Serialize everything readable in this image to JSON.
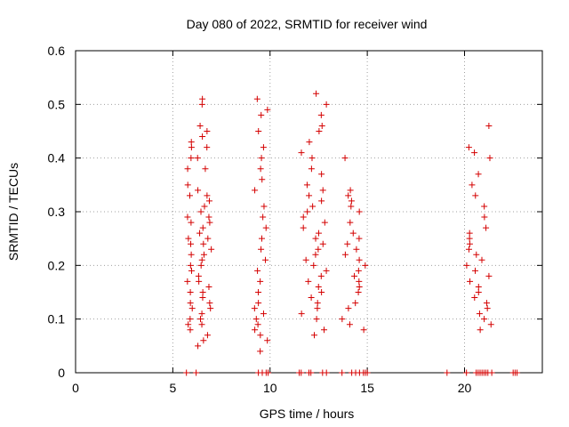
{
  "chart_data": {
    "type": "scatter",
    "title": "Day 080 of 2022, SRMTID for receiver wind",
    "xlabel": "GPS time / hours",
    "ylabel": "SRMTID / TECUs",
    "xlim": [
      0,
      24
    ],
    "ylim": [
      0,
      0.6
    ],
    "xticks": [
      0,
      5,
      10,
      15,
      20
    ],
    "yticks": [
      0,
      0.1,
      0.2,
      0.3,
      0.4,
      0.5,
      0.6
    ],
    "xtick_labels": [
      "0",
      "5",
      "10",
      "15",
      "20"
    ],
    "ytick_labels": [
      "0",
      "0.1",
      "0.2",
      "0.3",
      "0.4",
      "0.5",
      "0.6"
    ],
    "grid": true,
    "marker": "+",
    "series": [
      {
        "name": "SRMTID",
        "color": "#d40000",
        "clusters": [
          {
            "x_range": [
              5.7,
              6.0
            ],
            "y_samples": [
              0.08,
              0.09,
              0.1,
              0.12,
              0.13,
              0.15,
              0.17,
              0.19,
              0.2,
              0.22,
              0.24,
              0.25,
              0.28,
              0.29,
              0.33,
              0.35,
              0.38,
              0.4,
              0.42,
              0.43
            ]
          },
          {
            "x_range": [
              6.2,
              7.0
            ],
            "y_samples": [
              0.05,
              0.06,
              0.07,
              0.09,
              0.1,
              0.11,
              0.12,
              0.13,
              0.14,
              0.15,
              0.16,
              0.17,
              0.18,
              0.2,
              0.21,
              0.22,
              0.23,
              0.24,
              0.25,
              0.26,
              0.27,
              0.28,
              0.29,
              0.3,
              0.31,
              0.32,
              0.33,
              0.34,
              0.38,
              0.4,
              0.42,
              0.44,
              0.45,
              0.46,
              0.5,
              0.51
            ]
          },
          {
            "x_range": [
              9.2,
              9.9
            ],
            "y_samples": [
              0.04,
              0.06,
              0.07,
              0.08,
              0.09,
              0.1,
              0.11,
              0.12,
              0.13,
              0.15,
              0.17,
              0.19,
              0.21,
              0.23,
              0.25,
              0.27,
              0.29,
              0.31,
              0.34,
              0.36,
              0.38,
              0.4,
              0.42,
              0.45,
              0.48,
              0.49,
              0.51
            ]
          },
          {
            "x_range": [
              11.6,
              12.9
            ],
            "y_samples": [
              0.07,
              0.08,
              0.1,
              0.11,
              0.12,
              0.13,
              0.14,
              0.15,
              0.16,
              0.17,
              0.18,
              0.19,
              0.2,
              0.21,
              0.22,
              0.23,
              0.24,
              0.25,
              0.26,
              0.27,
              0.28,
              0.29,
              0.3,
              0.31,
              0.32,
              0.33,
              0.34,
              0.35,
              0.37,
              0.38,
              0.4,
              0.41,
              0.43,
              0.45,
              0.46,
              0.48,
              0.5,
              0.52
            ]
          },
          {
            "x_range": [
              13.7,
              15.0
            ],
            "y_samples": [
              0.08,
              0.09,
              0.1,
              0.12,
              0.13,
              0.15,
              0.16,
              0.17,
              0.18,
              0.19,
              0.2,
              0.21,
              0.22,
              0.23,
              0.24,
              0.25,
              0.26,
              0.28,
              0.3,
              0.31,
              0.32,
              0.33,
              0.34,
              0.4
            ]
          },
          {
            "x_range": [
              20.1,
              21.4
            ],
            "y_samples": [
              0.08,
              0.09,
              0.1,
              0.11,
              0.12,
              0.13,
              0.14,
              0.15,
              0.16,
              0.17,
              0.18,
              0.19,
              0.2,
              0.21,
              0.22,
              0.23,
              0.24,
              0.25,
              0.26,
              0.27,
              0.29,
              0.31,
              0.33,
              0.35,
              0.37,
              0.4,
              0.41,
              0.42,
              0.46
            ]
          }
        ],
        "zero_points_x": [
          5.7,
          6.2,
          9.4,
          9.6,
          9.8,
          9.9,
          11.5,
          11.6,
          12.0,
          12.1,
          12.7,
          12.9,
          13.7,
          14.2,
          14.4,
          14.6,
          14.8,
          14.9,
          15.0,
          19.1,
          20.1,
          20.6,
          20.7,
          20.8,
          20.9,
          21.0,
          21.1,
          21.2,
          21.4,
          22.5,
          22.6,
          22.7
        ]
      }
    ]
  }
}
